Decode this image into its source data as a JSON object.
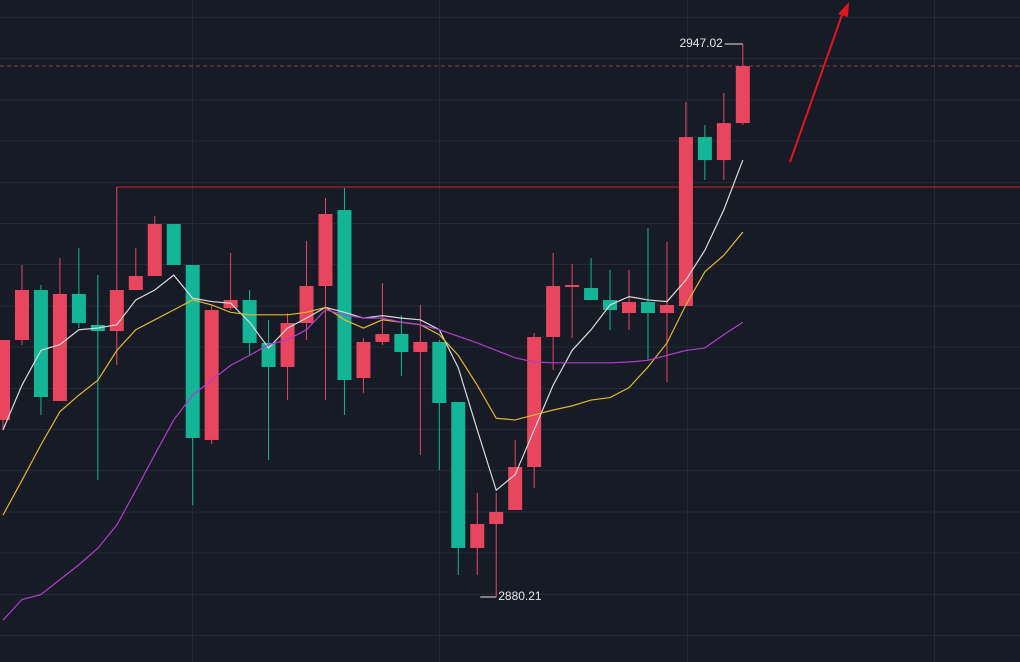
{
  "chart_data": {
    "type": "candlestick",
    "open": [
      2901.59,
      2911.26,
      2917.3,
      2903.89,
      2916.82,
      2913.07,
      2912.34,
      2917.3,
      2918.99,
      2925.27,
      2920.32,
      2899.18,
      2915.12,
      2916.09,
      2910.9,
      2908.0,
      2913.31,
      2917.78,
      2926.96,
      2906.67,
      2911.02,
      2911.98,
      2909.81,
      2911.02,
      2903.77,
      2886.13,
      2889.03,
      2890.72,
      2895.91,
      2911.62,
      2917.66,
      2917.54,
      2916.09,
      2914.52,
      2915.85,
      2914.52,
      2915.37,
      2935.78,
      2933.0,
      2937.47
    ],
    "high": [
      2911.26,
      2920.32,
      2917.9,
      2921.16,
      2922.37,
      2919.11,
      2929.74,
      2922.37,
      2926.24,
      2925.27,
      2920.32,
      2915.49,
      2921.77,
      2917.3,
      2913.67,
      2914.52,
      2923.22,
      2928.41,
      2929.62,
      2911.5,
      2918.14,
      2914.28,
      2915.49,
      2911.26,
      2903.77,
      2892.77,
      2892.77,
      2899.18,
      2912.1,
      2921.77,
      2920.44,
      2921.16,
      2919.72,
      2919.72,
      2924.79,
      2923.1,
      2940.01,
      2937.23,
      2941.1,
      2947.02
    ],
    "low": [
      2900.38,
      2910.65,
      2902.2,
      2903.89,
      2912.71,
      2894.34,
      2908.24,
      2917.3,
      2918.99,
      2920.32,
      2891.32,
      2898.69,
      2914.88,
      2909.44,
      2896.76,
      2904.01,
      2911.26,
      2904.01,
      2902.2,
      2904.85,
      2910.65,
      2906.91,
      2897.36,
      2895.55,
      2882.86,
      2882.86,
      2880.21,
      2890.72,
      2893.38,
      2907.63,
      2911.5,
      2916.09,
      2912.47,
      2912.47,
      2908.84,
      2906.18,
      2915.37,
      2930.59,
      2930.59,
      2937.23
    ],
    "close": [
      2911.26,
      2917.3,
      2904.37,
      2916.82,
      2913.31,
      2912.34,
      2917.3,
      2918.99,
      2925.27,
      2920.32,
      2899.42,
      2914.88,
      2916.09,
      2910.9,
      2908.0,
      2913.31,
      2917.78,
      2926.48,
      2906.42,
      2911.02,
      2911.98,
      2909.81,
      2911.02,
      2903.65,
      2886.13,
      2889.03,
      2890.48,
      2895.91,
      2911.62,
      2917.78,
      2917.9,
      2916.09,
      2914.88,
      2915.85,
      2914.52,
      2915.49,
      2935.78,
      2933.0,
      2937.47,
      2944.36
    ],
    "up_color": "#e8465e",
    "down_color": "#13b596",
    "moving_averages": [
      {
        "color": "#d9d9d9",
        "values": [
          2900.4,
          2905.8,
          2910.0,
          2910.7,
          2912.5,
          2912.7,
          2913.1,
          2916.1,
          2917.3,
          2919.1,
          2916.3,
          2915.9,
          2915.7,
          2913.4,
          2910.3,
          2912.7,
          2913.9,
          2915.2,
          2914.6,
          2913.9,
          2914.2,
          2913.9,
          2913.7,
          2912.5,
          2907.9,
          2900.4,
          2893.1,
          2895.0,
          2900.4,
          2905.8,
          2910.0,
          2912.5,
          2915.5,
          2916.5,
          2916.1,
          2915.9,
          2918.5,
          2922.1,
          2927.0,
          2933.0
        ]
      },
      {
        "color": "#e2b52c",
        "values": [
          2890.1,
          2894.3,
          2898.6,
          2902.6,
          2904.6,
          2906.4,
          2910.0,
          2912.5,
          2913.7,
          2914.9,
          2916.1,
          2915.5,
          2914.6,
          2914.3,
          2914.3,
          2914.3,
          2914.6,
          2915.2,
          2913.7,
          2912.7,
          2913.7,
          2913.4,
          2913.1,
          2911.9,
          2909.4,
          2905.8,
          2901.8,
          2901.6,
          2902.2,
          2902.8,
          2903.3,
          2904.0,
          2904.3,
          2905.5,
          2908.0,
          2910.9,
          2915.5,
          2919.5,
          2921.5,
          2924.3
        ]
      },
      {
        "color": "#b03cd0",
        "values": [
          2877.4,
          2879.9,
          2880.5,
          2882.3,
          2884.1,
          2886.1,
          2888.9,
          2893.1,
          2897.4,
          2901.6,
          2904.6,
          2906.4,
          2908.2,
          2909.4,
          2910.7,
          2911.3,
          2912.5,
          2914.9,
          2914.3,
          2913.9,
          2913.9,
          2913.4,
          2913.1,
          2912.5,
          2911.7,
          2910.9,
          2910.0,
          2909.1,
          2908.6,
          2908.5,
          2908.5,
          2908.5,
          2908.5,
          2908.6,
          2908.8,
          2909.4,
          2910.0,
          2910.3,
          2911.9,
          2913.4
        ]
      }
    ],
    "horizontal_line": {
      "value": 2929.74,
      "color": "#c8202a"
    },
    "ylim": [
      2872.35,
      2952.34
    ]
  }
}
